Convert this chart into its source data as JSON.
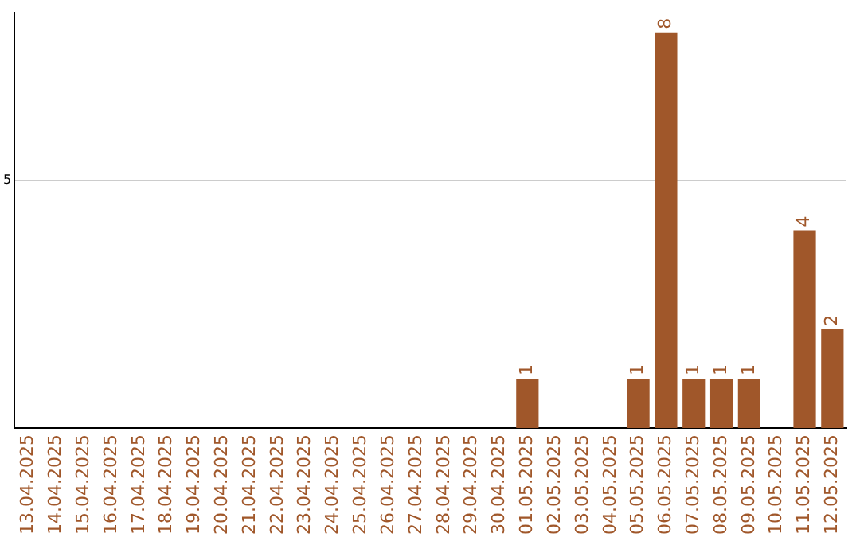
{
  "chart_data": {
    "type": "bar",
    "categories": [
      "13.04.2025",
      "14.04.2025",
      "15.04.2025",
      "16.04.2025",
      "17.04.2025",
      "18.04.2025",
      "19.04.2025",
      "20.04.2025",
      "21.04.2025",
      "22.04.2025",
      "23.04.2025",
      "24.04.2025",
      "25.04.2025",
      "26.04.2025",
      "27.04.2025",
      "28.04.2025",
      "29.04.2025",
      "30.04.2025",
      "01.05.2025",
      "02.05.2025",
      "03.05.2025",
      "04.05.2025",
      "05.05.2025",
      "06.05.2025",
      "07.05.2025",
      "08.05.2025",
      "09.05.2025",
      "10.05.2025",
      "11.05.2025",
      "12.05.2025"
    ],
    "values": [
      null,
      null,
      null,
      null,
      null,
      null,
      null,
      null,
      null,
      null,
      null,
      null,
      null,
      null,
      null,
      null,
      null,
      null,
      1,
      null,
      null,
      null,
      1,
      8,
      1,
      1,
      1,
      null,
      4,
      2
    ],
    "color": "#a0572a",
    "ylim": [
      0,
      8.4
    ],
    "yticks": [
      5
    ],
    "grid": "y",
    "data_labels": true,
    "legend": false
  }
}
